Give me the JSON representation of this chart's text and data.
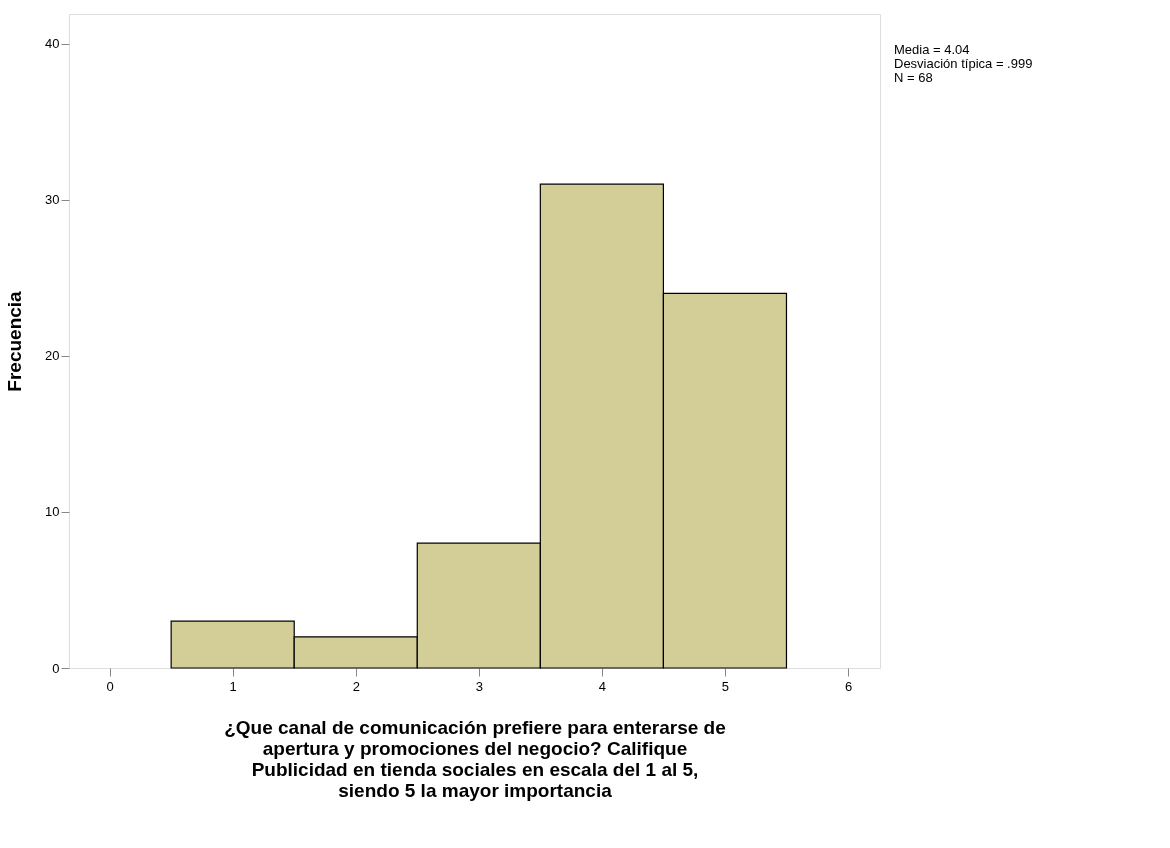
{
  "chart_data": {
    "type": "histogram",
    "xlabel": [
      "¿Que canal de comunicación prefiere para enterarse de",
      "apertura y promociones del negocio? Califique",
      "Publicidad en tienda sociales en escala del 1 al 5,",
      "siendo 5 la mayor importancia"
    ],
    "ylabel": "Frecuencia",
    "bins": [
      0.5,
      1.5,
      2.5,
      3.5,
      4.5,
      5.5
    ],
    "values": [
      3,
      2,
      8,
      31,
      24
    ],
    "color": "#d3ce97",
    "xlim": [
      -0.33,
      6.26
    ],
    "xticks": [
      0,
      1,
      2,
      3,
      4,
      5,
      6
    ],
    "ylim": [
      0,
      41.9
    ],
    "yticks": [
      0,
      10,
      20,
      30,
      40
    ],
    "grid": false,
    "annotations": [
      "Media = 4.04",
      "Desviación típica = .999",
      "N = 68"
    ]
  }
}
